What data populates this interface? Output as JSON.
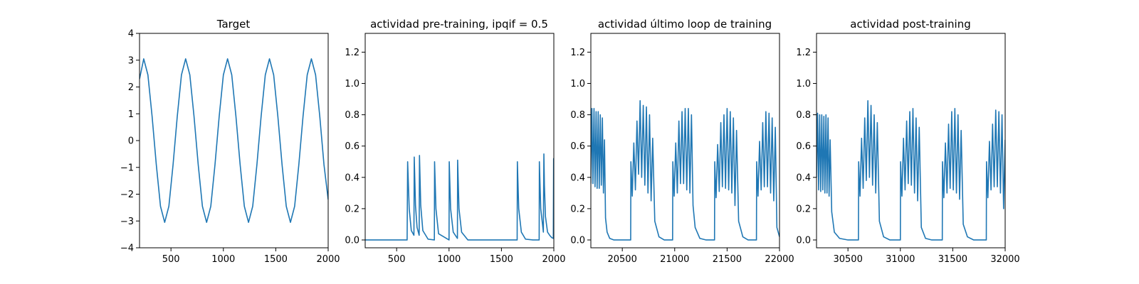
{
  "colors": {
    "line": "#1f77b4",
    "axes": "#000000",
    "background": "#ffffff"
  },
  "chart_data": [
    {
      "type": "line",
      "title": "Target",
      "xlabel": "",
      "ylabel": "",
      "xlim": [
        200,
        2000
      ],
      "ylim": [
        -4,
        4
      ],
      "xticks": [
        500,
        1000,
        1500,
        2000
      ],
      "yticks": [
        -4,
        -3,
        -2,
        -1,
        0,
        1,
        2,
        3,
        4
      ],
      "grid": false,
      "series": [
        {
          "x": [
            200,
            240,
            280,
            320,
            360,
            400,
            440,
            480,
            520,
            560,
            600,
            640,
            680,
            720,
            760,
            800,
            840,
            880,
            920,
            960,
            1000,
            1040,
            1080,
            1120,
            1160,
            1200,
            1240,
            1280,
            1320,
            1360,
            1400,
            1440,
            1480,
            1520,
            1560,
            1600,
            1640,
            1680,
            1720,
            1760,
            1800,
            1840,
            1880,
            1920,
            1960,
            2000
          ],
          "y": [
            2.3,
            3.05,
            2.45,
            0.9,
            -0.9,
            -2.45,
            -3.05,
            -2.45,
            -0.9,
            0.9,
            2.45,
            3.05,
            2.45,
            0.9,
            -0.9,
            -2.45,
            -3.05,
            -2.45,
            -0.9,
            0.9,
            2.45,
            3.05,
            2.45,
            0.9,
            -0.9,
            -2.45,
            -3.05,
            -2.45,
            -0.9,
            0.9,
            2.45,
            3.05,
            2.45,
            0.9,
            -0.9,
            -2.45,
            -3.05,
            -2.45,
            -0.9,
            0.9,
            2.45,
            3.05,
            2.45,
            0.9,
            -0.9,
            -2.2
          ]
        }
      ]
    },
    {
      "type": "line",
      "title": "actividad pre-training, ipqif = 0.5",
      "xlabel": "",
      "ylabel": "",
      "xlim": [
        200,
        2000
      ],
      "ylim": [
        -0.05,
        1.32
      ],
      "xticks": [
        500,
        1000,
        1500,
        2000
      ],
      "yticks": [
        0.0,
        0.2,
        0.4,
        0.6,
        0.8,
        1.0,
        1.2
      ],
      "grid": false,
      "series": [
        {
          "x": [
            200,
            600,
            605,
            620,
            640,
            665,
            668,
            680,
            695,
            715,
            718,
            730,
            750,
            800,
            860,
            862,
            875,
            900,
            1000,
            1002,
            1015,
            1040,
            1080,
            1082,
            1095,
            1120,
            1180,
            1300,
            1400,
            1500,
            1650,
            1652,
            1665,
            1690,
            1730,
            1800,
            1860,
            1862,
            1875,
            1900,
            1905,
            1910,
            1920,
            1940,
            1960,
            1980,
            1995,
            1998,
            2000
          ],
          "y": [
            0.0,
            0.0,
            0.5,
            0.2,
            0.06,
            0.03,
            0.53,
            0.22,
            0.08,
            0.03,
            0.54,
            0.22,
            0.06,
            0.005,
            0.0,
            0.5,
            0.2,
            0.04,
            0.0,
            0.5,
            0.2,
            0.05,
            0.01,
            0.51,
            0.2,
            0.05,
            0.0,
            0.0,
            0.0,
            0.0,
            0.0,
            0.5,
            0.2,
            0.05,
            0.005,
            0.0,
            0.0,
            0.5,
            0.2,
            0.05,
            0.55,
            0.35,
            0.15,
            0.05,
            0.03,
            0.015,
            0.01,
            0.52,
            0.3
          ]
        }
      ]
    },
    {
      "type": "line",
      "title": "actividad último loop de training",
      "xlabel": "",
      "ylabel": "",
      "xlim": [
        20200,
        22000
      ],
      "ylim": [
        -0.05,
        1.32
      ],
      "xticks": [
        20500,
        21000,
        21500,
        22000
      ],
      "yticks": [
        0.0,
        0.2,
        0.4,
        0.6,
        0.8,
        1.0,
        1.2
      ],
      "grid": false,
      "series": [
        {
          "x": [
            20200,
            20210,
            20220,
            20230,
            20240,
            20250,
            20260,
            20270,
            20280,
            20290,
            20300,
            20310,
            20320,
            20330,
            20340,
            20355,
            20380,
            20420,
            20500,
            20580,
            20582,
            20595,
            20610,
            20625,
            20640,
            20655,
            20670,
            20685,
            20700,
            20715,
            20730,
            20745,
            20760,
            20775,
            20790,
            20810,
            20850,
            20900,
            20980,
            20982,
            20995,
            21010,
            21025,
            21040,
            21055,
            21070,
            21085,
            21100,
            21115,
            21130,
            21145,
            21160,
            21175,
            21195,
            21240,
            21300,
            21380,
            21382,
            21395,
            21410,
            21425,
            21440,
            21455,
            21470,
            21485,
            21500,
            21515,
            21530,
            21545,
            21560,
            21575,
            21590,
            21610,
            21650,
            21700,
            21780,
            21782,
            21795,
            21810,
            21825,
            21840,
            21855,
            21870,
            21885,
            21900,
            21915,
            21930,
            21945,
            21960,
            21975,
            22000
          ],
          "y": [
            0.36,
            0.84,
            0.36,
            0.84,
            0.34,
            0.82,
            0.33,
            0.82,
            0.33,
            0.8,
            0.35,
            0.78,
            0.3,
            0.64,
            0.14,
            0.05,
            0.01,
            0.0,
            0.0,
            0.0,
            0.5,
            0.28,
            0.62,
            0.32,
            0.76,
            0.42,
            0.89,
            0.4,
            0.86,
            0.35,
            0.85,
            0.3,
            0.8,
            0.25,
            0.65,
            0.12,
            0.02,
            0.0,
            0.0,
            0.5,
            0.28,
            0.62,
            0.3,
            0.76,
            0.36,
            0.82,
            0.36,
            0.84,
            0.32,
            0.84,
            0.3,
            0.8,
            0.22,
            0.08,
            0.01,
            0.0,
            0.0,
            0.5,
            0.27,
            0.61,
            0.31,
            0.75,
            0.34,
            0.8,
            0.33,
            0.84,
            0.32,
            0.82,
            0.3,
            0.78,
            0.22,
            0.7,
            0.12,
            0.02,
            0.0,
            0.0,
            0.5,
            0.28,
            0.63,
            0.32,
            0.75,
            0.34,
            0.82,
            0.34,
            0.81,
            0.3,
            0.78,
            0.25,
            0.72,
            0.08,
            0.02
          ]
        }
      ]
    },
    {
      "type": "line",
      "title": "actividad post-training",
      "xlabel": "",
      "ylabel": "",
      "xlim": [
        30200,
        32000
      ],
      "ylim": [
        -0.05,
        1.32
      ],
      "xticks": [
        30500,
        31000,
        31500,
        32000
      ],
      "yticks": [
        0.0,
        0.2,
        0.4,
        0.6,
        0.8,
        1.0,
        1.2
      ],
      "grid": false,
      "series": [
        {
          "x": [
            30200,
            30210,
            30220,
            30230,
            30240,
            30250,
            30260,
            30270,
            30280,
            30290,
            30300,
            30310,
            30320,
            30330,
            30345,
            30370,
            30420,
            30500,
            30600,
            30602,
            30615,
            30630,
            30645,
            30660,
            30675,
            30690,
            30705,
            30720,
            30735,
            30750,
            30765,
            30780,
            30800,
            30840,
            30900,
            31000,
            31002,
            31015,
            31030,
            31045,
            31060,
            31075,
            31090,
            31105,
            31120,
            31135,
            31150,
            31165,
            31180,
            31200,
            31240,
            31300,
            31400,
            31402,
            31415,
            31430,
            31445,
            31460,
            31475,
            31490,
            31505,
            31520,
            31535,
            31550,
            31565,
            31580,
            31600,
            31640,
            31700,
            31800,
            31820,
            31822,
            31835,
            31850,
            31865,
            31880,
            31895,
            31910,
            31925,
            31940,
            31955,
            31970,
            31985,
            32000
          ],
          "y": [
            0.4,
            0.81,
            0.32,
            0.8,
            0.31,
            0.8,
            0.32,
            0.79,
            0.3,
            0.8,
            0.3,
            0.78,
            0.28,
            0.64,
            0.18,
            0.05,
            0.01,
            0.0,
            0.0,
            0.5,
            0.28,
            0.65,
            0.33,
            0.78,
            0.38,
            0.89,
            0.4,
            0.86,
            0.35,
            0.8,
            0.3,
            0.75,
            0.12,
            0.02,
            0.0,
            0.0,
            0.5,
            0.28,
            0.65,
            0.32,
            0.76,
            0.36,
            0.82,
            0.35,
            0.84,
            0.3,
            0.78,
            0.25,
            0.72,
            0.08,
            0.01,
            0.0,
            0.0,
            0.5,
            0.27,
            0.62,
            0.3,
            0.74,
            0.33,
            0.82,
            0.32,
            0.84,
            0.3,
            0.8,
            0.26,
            0.7,
            0.1,
            0.02,
            0.0,
            0.0,
            0.0,
            0.5,
            0.27,
            0.63,
            0.32,
            0.74,
            0.34,
            0.83,
            0.34,
            0.82,
            0.3,
            0.8,
            0.2,
            0.64
          ]
        }
      ]
    }
  ]
}
